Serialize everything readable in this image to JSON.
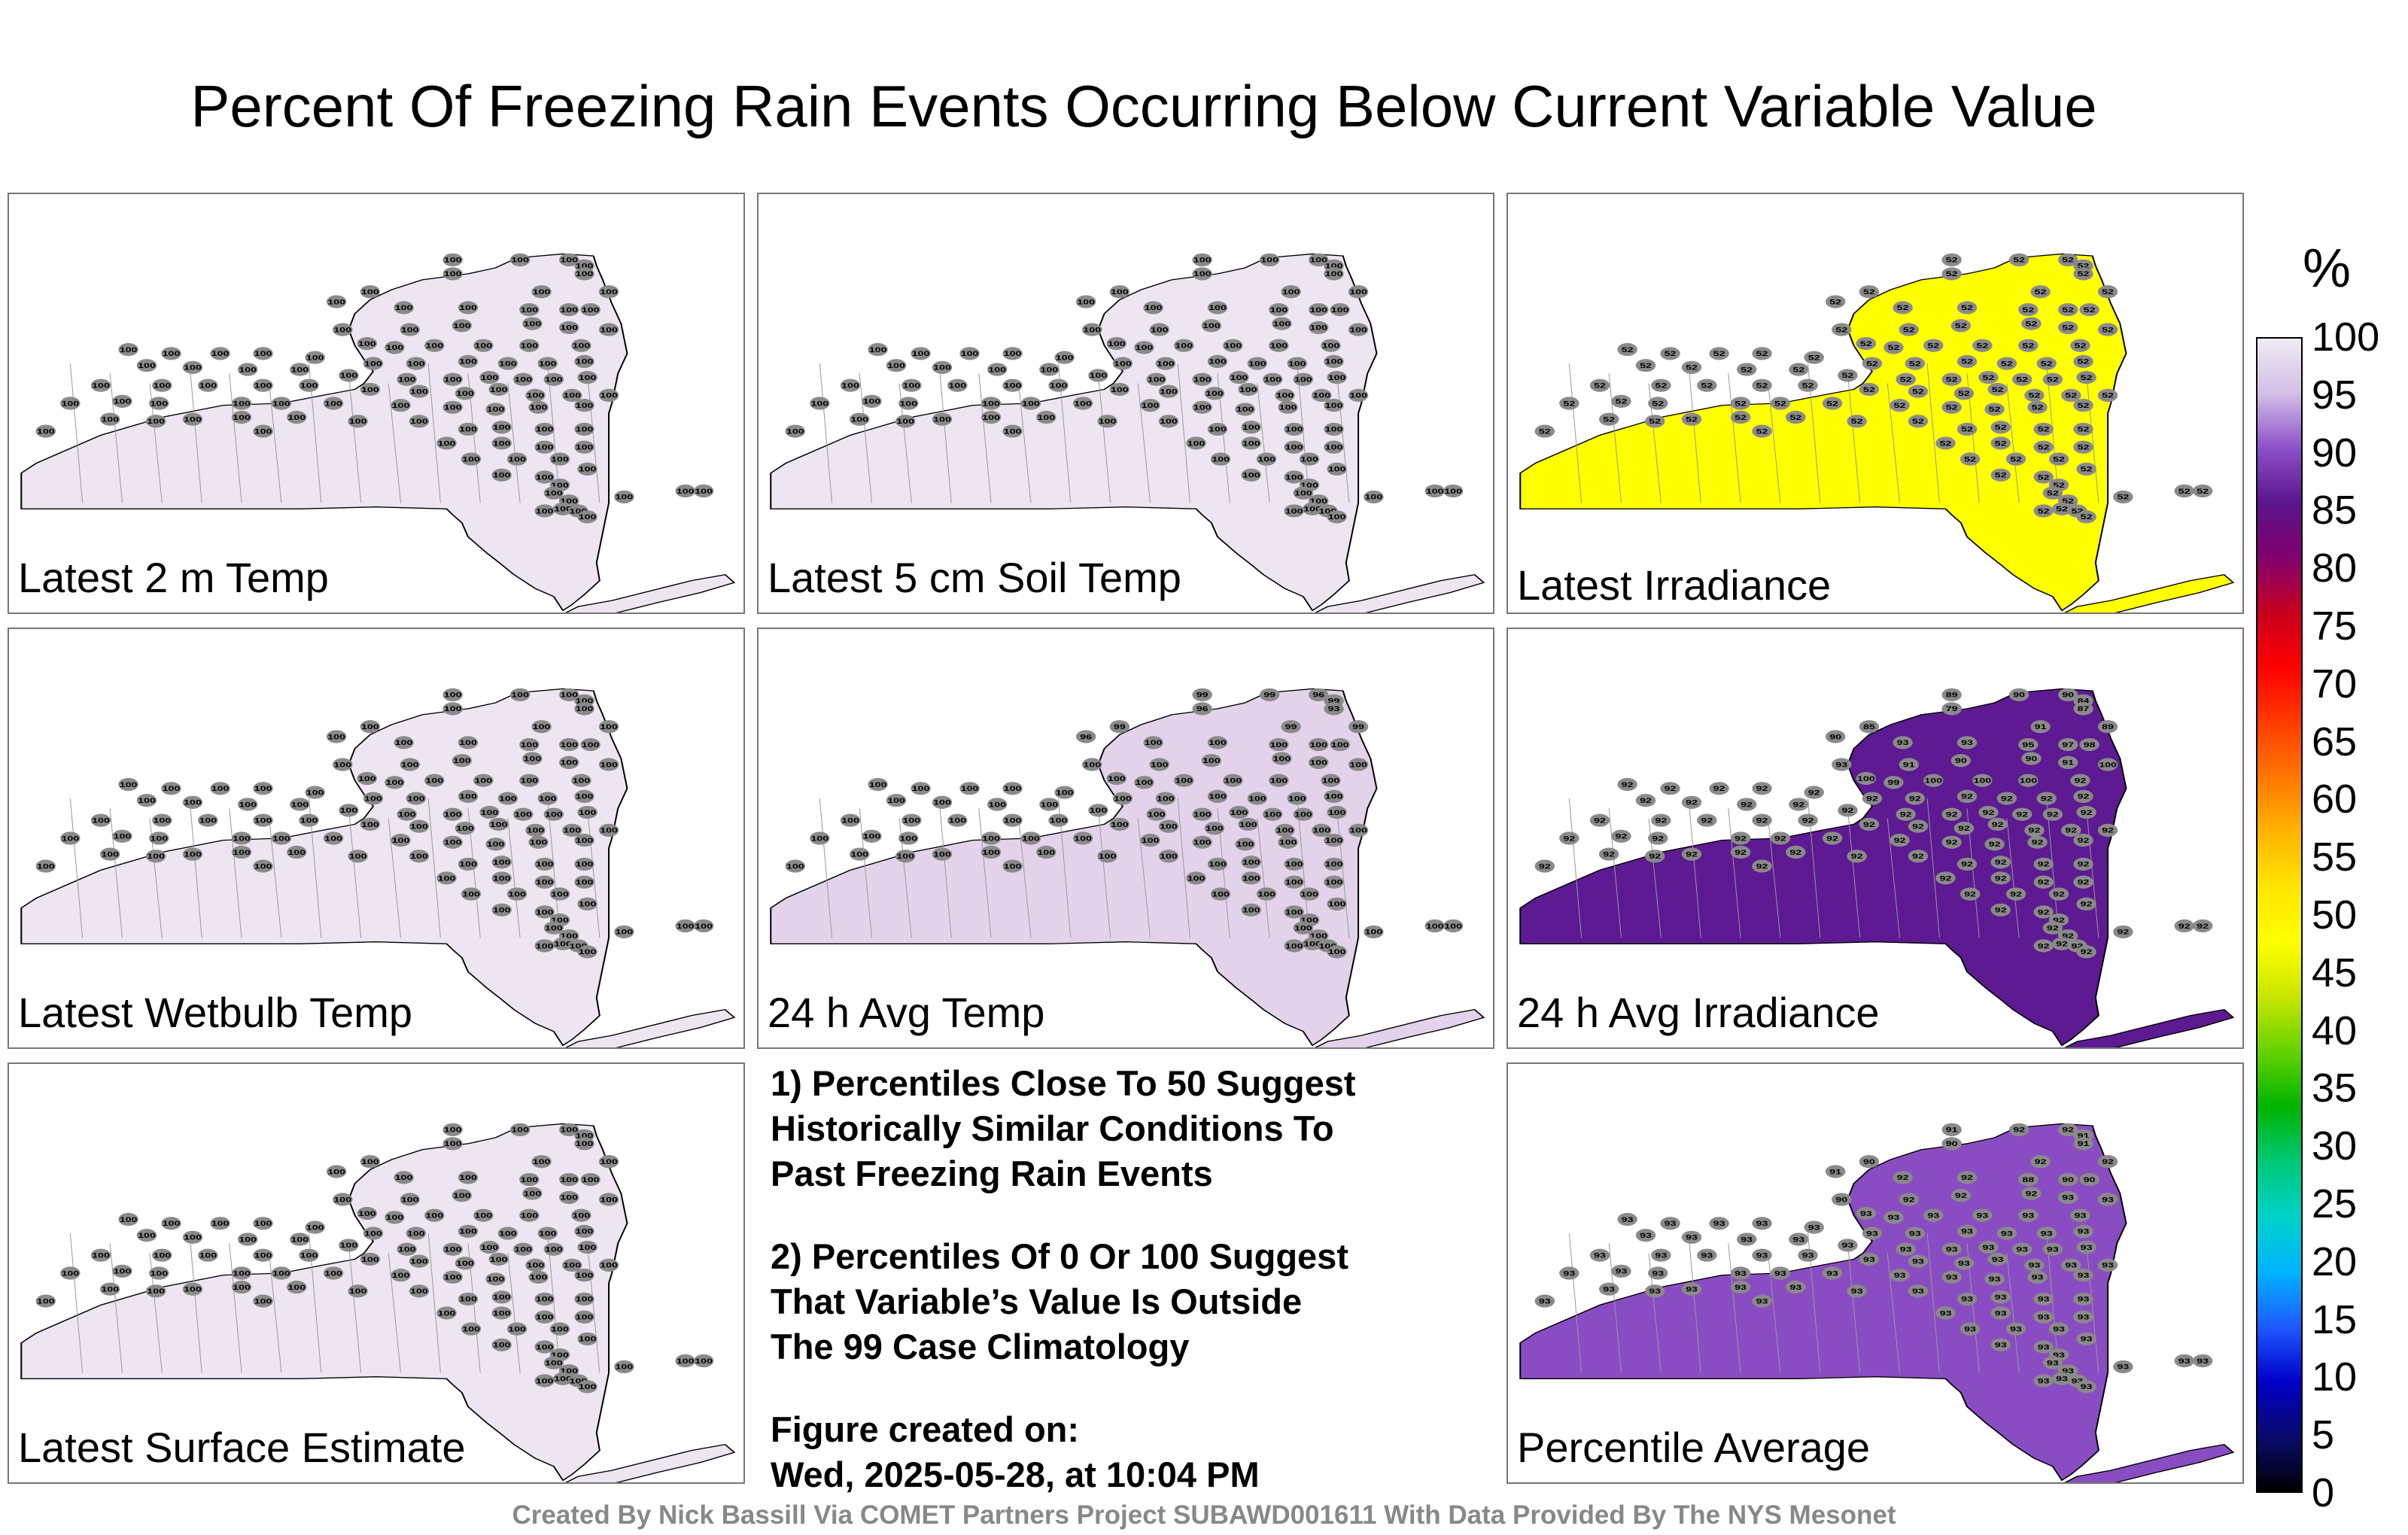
{
  "title": "Percent Of Freezing Rain Events Occurring Below Current Variable Value",
  "panels": [
    {
      "label": "Latest 2 m Temp",
      "fill": "#ede6f1",
      "value": 100
    },
    {
      "label": "Latest 5 cm Soil Temp",
      "fill": "#ede6f1",
      "value": 100
    },
    {
      "label": "Latest Irradiance",
      "fill": "#ffff00",
      "value": 52
    },
    {
      "label": "Latest Wetbulb Temp",
      "fill": "#ede6f1",
      "value": 100
    },
    {
      "label": "24 h Avg Temp",
      "fill": "#e2d3ea",
      "value": 100,
      "overrides": [
        99,
        99,
        96,
        99,
        93,
        96,
        99,
        96,
        99,
        99
      ]
    },
    {
      "label": "24 h Avg Irradiance",
      "fill": "#5d1a92",
      "value": 92,
      "overrides": [
        89,
        90,
        90,
        84,
        87,
        79,
        85,
        90,
        91,
        89,
        93,
        93,
        95,
        97,
        98,
        93,
        91,
        90,
        90,
        91,
        100,
        100,
        99,
        100,
        100,
        100
      ]
    },
    {
      "label": "Latest Surface Estimate",
      "fill": "#ede6f1",
      "value": 100
    },
    {
      "label": "Percentile Average",
      "fill": "#8a4cc2",
      "value": 93,
      "overrides": [
        91,
        92,
        92,
        91,
        91,
        90,
        90,
        91,
        92,
        92,
        92,
        92,
        88,
        90,
        90,
        90,
        92,
        92,
        92
      ]
    }
  ],
  "notes": [
    "1) Percentiles Close To 50 Suggest\nHistorically Similar Conditions To\nPast Freezing Rain Events",
    "2) Percentiles Of 0 Or 100 Suggest\nThat Variable’s Value Is Outside\nThe 99 Case Climatology",
    "Figure created on:\nWed, 2025-05-28, at 10:04 PM"
  ],
  "colorbar": {
    "unit": "%",
    "ticks": [
      "0",
      "5",
      "10",
      "15",
      "20",
      "25",
      "30",
      "35",
      "40",
      "45",
      "50",
      "55",
      "60",
      "65",
      "70",
      "75",
      "80",
      "85",
      "90",
      "95",
      "100"
    ],
    "colors": [
      "#000000",
      "#0a0a6e",
      "#0000c8",
      "#1e5aff",
      "#00b4ff",
      "#00d2c8",
      "#00c878",
      "#00b400",
      "#64d200",
      "#c8e600",
      "#ffff00",
      "#ffe600",
      "#ffb400",
      "#ff7800",
      "#ff3c00",
      "#ff0000",
      "#c8001e",
      "#82006e",
      "#5a148c",
      "#8c50c8",
      "#d2bee6",
      "#f0ecf4"
    ]
  },
  "footer": "Created By Nick Bassill Via COMET Partners Project SUBAWD001611 With Data Provided By The NYS Mesonet"
}
